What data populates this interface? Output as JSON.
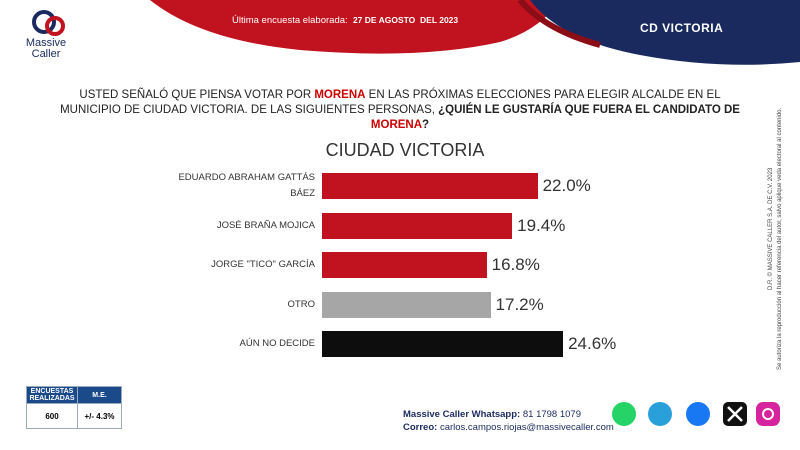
{
  "header": {
    "brand": "Massive",
    "brand2": "Caller",
    "survey_label": "Última encuesta elaborada:",
    "survey_date": "27 DE AGOSTO  DEL 2023",
    "region": "CD VICTORIA"
  },
  "question": {
    "part1": "USTED SEÑALÓ QUE PIENSA VOTAR POR ",
    "party1": "MORENA",
    "part2": " EN LAS PRÓXIMAS ELECCIONES PARA ELEGIR ALCALDE EN EL MUNICIPIO DE CIUDAD VICTORIA. DE LAS SIGUIENTES PERSONAS, ",
    "part3": "¿QUIÉN LE GUSTARÍA QUE FUERA EL CANDIDATO DE ",
    "party2": "MORENA",
    "part4": "?"
  },
  "chart_data": {
    "type": "bar",
    "orientation": "horizontal",
    "title": "CIUDAD VICTORIA",
    "categories": [
      "EDUARDO ABRAHAM GATTÁS BÁEZ",
      "JOSÉ BRAÑA MOJICA",
      "JORGE \"TICO\" GARCÍA",
      "OTRO",
      "AÚN NO DECIDE"
    ],
    "values": [
      22.0,
      19.4,
      16.8,
      17.2,
      24.6
    ],
    "value_labels": [
      "22.0%",
      "19.4%",
      "16.8%",
      "17.2%",
      "24.6%"
    ],
    "colors": [
      "#c1121f",
      "#c1121f",
      "#c1121f",
      "#a6a6a6",
      "#0d0d0d"
    ]
  },
  "side_notes": [
    "D.R. © MASSIVE CALLER S.A. DE C.V. 2023",
    "Se autoriza la reproducción al hacer referencia del autor, salvo aplique veda electoral al contenido."
  ],
  "table": {
    "headers": [
      "ENCUESTAS REALIZADAS",
      "M.E."
    ],
    "rows": [
      [
        "600",
        "+/- 4.3%"
      ]
    ]
  },
  "footer": {
    "whatsapp_label": "Massive Caller Whatsapp:",
    "whatsapp": "81 1798 1079",
    "email_label": "Correo:",
    "email": "carlos.campos.riojas@massivecaller.com"
  }
}
